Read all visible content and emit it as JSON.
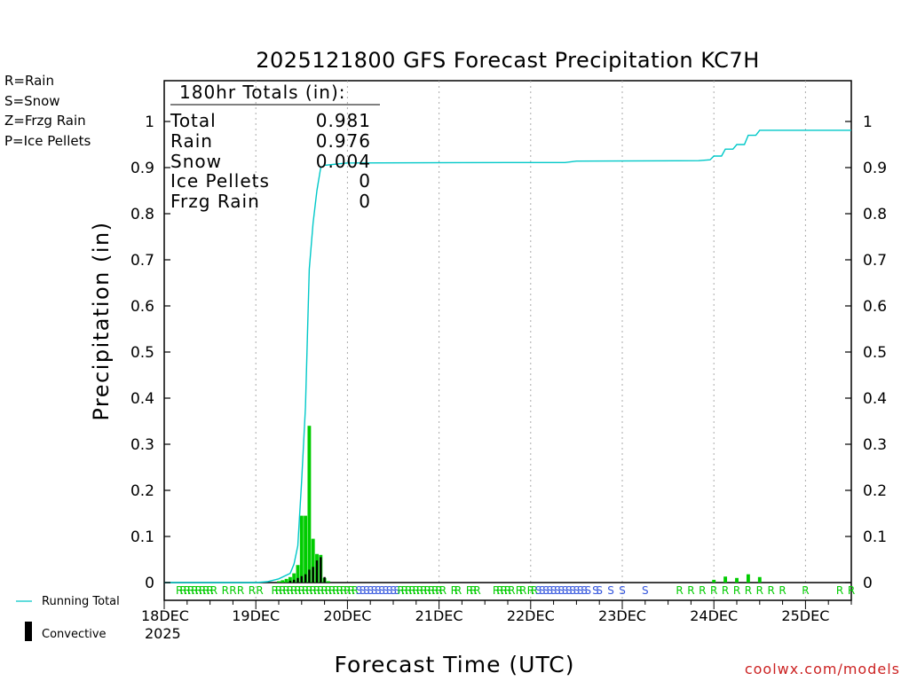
{
  "chart_data": {
    "type": "bar",
    "title": "2025121800 GFS Forecast Precipitation KC7H",
    "xlabel": "Forecast Time (UTC)",
    "ylabel": "Precipitation (in)",
    "ylim": [
      0,
      1.08
    ],
    "xlim": [
      0,
      180
    ],
    "grid": true,
    "y_ticks": [
      "0",
      "0.1",
      "0.2",
      "0.3",
      "0.4",
      "0.5",
      "0.6",
      "0.7",
      "0.8",
      "0.9",
      "1"
    ],
    "x_ticks": [
      {
        "hour": 0,
        "label": "18DEC",
        "sub": "2025"
      },
      {
        "hour": 24,
        "label": "19DEC",
        "sub": ""
      },
      {
        "hour": 48,
        "label": "20DEC",
        "sub": ""
      },
      {
        "hour": 72,
        "label": "21DEC",
        "sub": ""
      },
      {
        "hour": 96,
        "label": "22DEC",
        "sub": ""
      },
      {
        "hour": 120,
        "label": "23DEC",
        "sub": ""
      },
      {
        "hour": 144,
        "label": "24DEC",
        "sub": ""
      },
      {
        "hour": 168,
        "label": "25DEC",
        "sub": ""
      }
    ],
    "colors": {
      "rain": "#00cc00",
      "snow": "#3355dd",
      "frzg_rain": "#ff8c1a",
      "ice_pellets": "#e0178c",
      "running_total": "#00c8c8",
      "convective": "#000000",
      "grid": "#aaaaaa",
      "footer": "#cc2222"
    },
    "precip_type_legend": [
      {
        "label": "R=Rain",
        "color": "#00cc00"
      },
      {
        "label": "S=Snow",
        "color": "#3355dd"
      },
      {
        "label": "Z=Frzg Rain",
        "color": "#ff8c1a"
      },
      {
        "label": "P=Ice Pellets",
        "color": "#e0178c"
      }
    ],
    "series_legend": {
      "running_total": "Running Total",
      "convective": "Convective"
    },
    "totals_box": {
      "heading": "180hr Totals (in):",
      "rows": [
        {
          "label": "Total",
          "value": "0.981"
        },
        {
          "label": "Rain",
          "value": "0.976"
        },
        {
          "label": "Snow",
          "value": "0.004"
        },
        {
          "label": "Ice Pellets",
          "value": "0"
        },
        {
          "label": "Frzg Rain",
          "value": "0"
        }
      ]
    },
    "bars": [
      {
        "hour": 30,
        "value": 0.003
      },
      {
        "hour": 31,
        "value": 0.005
      },
      {
        "hour": 32,
        "value": 0.008
      },
      {
        "hour": 33,
        "value": 0.012
      },
      {
        "hour": 34,
        "value": 0.02
      },
      {
        "hour": 35,
        "value": 0.038
      },
      {
        "hour": 36,
        "value": 0.145
      },
      {
        "hour": 37,
        "value": 0.145
      },
      {
        "hour": 38,
        "value": 0.34
      },
      {
        "hour": 39,
        "value": 0.095
      },
      {
        "hour": 40,
        "value": 0.062
      },
      {
        "hour": 41,
        "value": 0.06
      },
      {
        "hour": 42,
        "value": 0.01
      },
      {
        "hour": 43,
        "value": 0.003
      },
      {
        "hour": 144,
        "value": 0.006
      },
      {
        "hour": 147,
        "value": 0.013
      },
      {
        "hour": 150,
        "value": 0.01
      },
      {
        "hour": 153,
        "value": 0.018
      },
      {
        "hour": 156,
        "value": 0.012
      }
    ],
    "convective_bars": [
      {
        "hour": 33,
        "value": 0.004
      },
      {
        "hour": 34,
        "value": 0.006
      },
      {
        "hour": 35,
        "value": 0.01
      },
      {
        "hour": 36,
        "value": 0.014
      },
      {
        "hour": 37,
        "value": 0.018
      },
      {
        "hour": 38,
        "value": 0.028
      },
      {
        "hour": 39,
        "value": 0.034
      },
      {
        "hour": 40,
        "value": 0.048
      },
      {
        "hour": 41,
        "value": 0.055
      },
      {
        "hour": 42,
        "value": 0.012
      }
    ],
    "running_total": [
      [
        0,
        0
      ],
      [
        24,
        0
      ],
      [
        27,
        0.002
      ],
      [
        30,
        0.008
      ],
      [
        33,
        0.02
      ],
      [
        34,
        0.04
      ],
      [
        35,
        0.08
      ],
      [
        36,
        0.22
      ],
      [
        37,
        0.38
      ],
      [
        38,
        0.68
      ],
      [
        39,
        0.78
      ],
      [
        40,
        0.85
      ],
      [
        41,
        0.9
      ],
      [
        42,
        0.905
      ],
      [
        48,
        0.91
      ],
      [
        90,
        0.911
      ],
      [
        105,
        0.911
      ],
      [
        108,
        0.914
      ],
      [
        140,
        0.915
      ],
      [
        143,
        0.917
      ],
      [
        144,
        0.925
      ],
      [
        146,
        0.925
      ],
      [
        147,
        0.94
      ],
      [
        149,
        0.94
      ],
      [
        150,
        0.95
      ],
      [
        152,
        0.95
      ],
      [
        153,
        0.97
      ],
      [
        155,
        0.97
      ],
      [
        156,
        0.981
      ],
      [
        180,
        0.981
      ]
    ],
    "precip_type_markers": [
      {
        "hour": 4,
        "type": "R"
      },
      {
        "hour": 5,
        "type": "R"
      },
      {
        "hour": 6,
        "type": "R"
      },
      {
        "hour": 7,
        "type": "R"
      },
      {
        "hour": 8,
        "type": "R"
      },
      {
        "hour": 9,
        "type": "R"
      },
      {
        "hour": 10,
        "type": "R"
      },
      {
        "hour": 11,
        "type": "R"
      },
      {
        "hour": 12,
        "type": "R"
      },
      {
        "hour": 13,
        "type": "R"
      },
      {
        "hour": 16,
        "type": "R"
      },
      {
        "hour": 18,
        "type": "R"
      },
      {
        "hour": 20,
        "type": "R"
      },
      {
        "hour": 23,
        "type": "R"
      },
      {
        "hour": 25,
        "type": "R"
      },
      {
        "hour": 29,
        "type": "R"
      },
      {
        "hour": 30,
        "type": "R"
      },
      {
        "hour": 31,
        "type": "R"
      },
      {
        "hour": 32,
        "type": "R"
      },
      {
        "hour": 33,
        "type": "R"
      },
      {
        "hour": 34,
        "type": "R"
      },
      {
        "hour": 35,
        "type": "R"
      },
      {
        "hour": 36,
        "type": "R"
      },
      {
        "hour": 37,
        "type": "R"
      },
      {
        "hour": 38,
        "type": "R"
      },
      {
        "hour": 39,
        "type": "R"
      },
      {
        "hour": 40,
        "type": "R"
      },
      {
        "hour": 41,
        "type": "R"
      },
      {
        "hour": 42,
        "type": "R"
      },
      {
        "hour": 43,
        "type": "R"
      },
      {
        "hour": 44,
        "type": "R"
      },
      {
        "hour": 45,
        "type": "R"
      },
      {
        "hour": 46,
        "type": "R"
      },
      {
        "hour": 47,
        "type": "R"
      },
      {
        "hour": 48,
        "type": "R"
      },
      {
        "hour": 49,
        "type": "R"
      },
      {
        "hour": 50,
        "type": "R"
      },
      {
        "hour": 51,
        "type": "S"
      },
      {
        "hour": 52,
        "type": "S"
      },
      {
        "hour": 53,
        "type": "S"
      },
      {
        "hour": 54,
        "type": "S"
      },
      {
        "hour": 55,
        "type": "S"
      },
      {
        "hour": 56,
        "type": "S"
      },
      {
        "hour": 57,
        "type": "S"
      },
      {
        "hour": 58,
        "type": "S"
      },
      {
        "hour": 59,
        "type": "S"
      },
      {
        "hour": 60,
        "type": "S"
      },
      {
        "hour": 61,
        "type": "S"
      },
      {
        "hour": 62,
        "type": "R"
      },
      {
        "hour": 63,
        "type": "R"
      },
      {
        "hour": 64,
        "type": "R"
      },
      {
        "hour": 65,
        "type": "R"
      },
      {
        "hour": 66,
        "type": "R"
      },
      {
        "hour": 67,
        "type": "R"
      },
      {
        "hour": 68,
        "type": "R"
      },
      {
        "hour": 69,
        "type": "R"
      },
      {
        "hour": 70,
        "type": "R"
      },
      {
        "hour": 71,
        "type": "R"
      },
      {
        "hour": 72,
        "type": "R"
      },
      {
        "hour": 73,
        "type": "R"
      },
      {
        "hour": 76,
        "type": "R"
      },
      {
        "hour": 77,
        "type": "R"
      },
      {
        "hour": 80,
        "type": "R"
      },
      {
        "hour": 81,
        "type": "R"
      },
      {
        "hour": 82,
        "type": "R"
      },
      {
        "hour": 87,
        "type": "R"
      },
      {
        "hour": 88,
        "type": "R"
      },
      {
        "hour": 89,
        "type": "R"
      },
      {
        "hour": 90,
        "type": "R"
      },
      {
        "hour": 91,
        "type": "R"
      },
      {
        "hour": 93,
        "type": "R"
      },
      {
        "hour": 94,
        "type": "R"
      },
      {
        "hour": 96,
        "type": "R"
      },
      {
        "hour": 97,
        "type": "R"
      },
      {
        "hour": 98,
        "type": "S"
      },
      {
        "hour": 99,
        "type": "S"
      },
      {
        "hour": 100,
        "type": "S"
      },
      {
        "hour": 101,
        "type": "S"
      },
      {
        "hour": 102,
        "type": "S"
      },
      {
        "hour": 103,
        "type": "S"
      },
      {
        "hour": 104,
        "type": "S"
      },
      {
        "hour": 105,
        "type": "S"
      },
      {
        "hour": 106,
        "type": "S"
      },
      {
        "hour": 107,
        "type": "S"
      },
      {
        "hour": 108,
        "type": "S"
      },
      {
        "hour": 109,
        "type": "S"
      },
      {
        "hour": 110,
        "type": "S"
      },
      {
        "hour": 111,
        "type": "S"
      },
      {
        "hour": 113,
        "type": "S"
      },
      {
        "hour": 114,
        "type": "S"
      },
      {
        "hour": 117,
        "type": "S"
      },
      {
        "hour": 120,
        "type": "S"
      },
      {
        "hour": 126,
        "type": "S"
      },
      {
        "hour": 135,
        "type": "R"
      },
      {
        "hour": 138,
        "type": "R"
      },
      {
        "hour": 141,
        "type": "R"
      },
      {
        "hour": 144,
        "type": "R"
      },
      {
        "hour": 147,
        "type": "R"
      },
      {
        "hour": 150,
        "type": "R"
      },
      {
        "hour": 153,
        "type": "R"
      },
      {
        "hour": 156,
        "type": "R"
      },
      {
        "hour": 159,
        "type": "R"
      },
      {
        "hour": 162,
        "type": "R"
      },
      {
        "hour": 168,
        "type": "R"
      },
      {
        "hour": 177,
        "type": "R"
      },
      {
        "hour": 180,
        "type": "R"
      }
    ]
  },
  "footer": {
    "site": "coolwx.com/models"
  }
}
